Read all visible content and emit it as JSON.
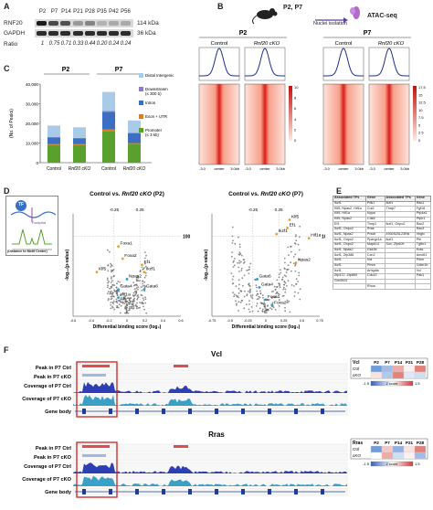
{
  "panel_letters": {
    "a": "A",
    "b": "B",
    "c": "C",
    "d": "D",
    "e": "E",
    "f": "F"
  },
  "panel_a": {
    "columns": [
      "P2",
      "P7",
      "P14",
      "P21",
      "P28",
      "P35",
      "P42",
      "P56"
    ],
    "rows": [
      {
        "label": "RNF20",
        "kda": "114 kDa"
      },
      {
        "label": "GAPDH",
        "kda": "36 kDa"
      }
    ],
    "ratio_label": "Ratio",
    "ratios": [
      "1",
      "0.75",
      "0.71",
      "0.33",
      "0.44",
      "0.20",
      "0.24",
      "0.24"
    ]
  },
  "panel_b": {
    "timepoints": "P2, P7",
    "nuclei": "Nuclei isolation",
    "assay": "ATAC-seq",
    "groups": [
      {
        "title": "P2",
        "sub": [
          "Control",
          "Rnf20 cKO"
        ]
      },
      {
        "title": "P7",
        "sub": [
          "Control",
          "Rnf20 cKO"
        ]
      }
    ],
    "axis_ticks": [
      "-3.0",
      "center",
      "3.0kb"
    ],
    "scale_p2": [
      "10",
      "8",
      "6",
      "4",
      "2",
      "0"
    ],
    "scale_p7": [
      "17.5",
      "15",
      "12.5",
      "10",
      "7.5",
      "5",
      "2.5",
      "0"
    ]
  },
  "panel_c": {
    "chart_data": {
      "type": "bar",
      "title": "",
      "ylabel": "(No. of Peaks)",
      "groups": [
        "P2",
        "P2",
        "P7",
        "P7"
      ],
      "categories": [
        "Control",
        "Rnf20 cKO",
        "Control",
        "Rnf20 cKO"
      ],
      "y_ticks": [
        "40,000",
        "30,000",
        "20,000",
        "10,000",
        "0"
      ],
      "ylim": [
        0,
        40000
      ],
      "series": [
        {
          "name": "Promoter (≤ 3 kb)",
          "color": "#5aa02c",
          "values": [
            9000,
            9000,
            16000,
            9500
          ]
        },
        {
          "name": "Exon + UTR",
          "color": "#e07b1a",
          "values": [
            400,
            400,
            900,
            500
          ]
        },
        {
          "name": "Intron",
          "color": "#3a6fc4",
          "values": [
            3500,
            3000,
            9000,
            5000
          ]
        },
        {
          "name": "Downstream (≤ 300 b)",
          "color": "#8a7cc9",
          "values": [
            200,
            200,
            400,
            300
          ]
        },
        {
          "name": "Distal Intergenic",
          "color": "#a9cbe8",
          "values": [
            5800,
            5400,
            9700,
            6200
          ]
        }
      ]
    }
  },
  "panel_d": {
    "schematic": {
      "tf": "TF",
      "footprint": "Footprint",
      "dnase": "DNA accessibility",
      "motif": "(Distance to Motif Center)"
    },
    "plots": [
      {
        "title_prefix": "Control vs. ",
        "title_italic": "Rnf20 cKO",
        "title_suffix": " (P2)",
        "chart_data": {
          "type": "scatter",
          "xlabel": "Differential binding score (log₂)",
          "ylabel": "-log₁₀(p-value)",
          "x_ticks": [
            "-0.6",
            "-0.4",
            "-0.2",
            "0",
            "0.2",
            "0.4",
            "0.6"
          ],
          "y_ref": "100",
          "top_ticks": [
            "-0.25",
            "0.25"
          ],
          "labels": [
            "Foxa1",
            "Foxa2",
            "Klf5",
            "Ef1",
            "Ikzf1",
            "Npas2",
            "Gata4",
            "Gata6",
            "Hif1a"
          ]
        }
      },
      {
        "title_prefix": "Control vs. ",
        "title_italic": "Rnf20 cKO",
        "title_suffix": " (P7)",
        "chart_data": {
          "type": "scatter",
          "xlabel": "Differential binding score (log₂)",
          "ylabel": "-log₁₀(p-value)",
          "x_ticks": [
            "-0.75",
            "-0.5",
            "-0.25",
            "0",
            "0.25",
            "0.5",
            "0.75"
          ],
          "y_ref": "100",
          "top_ticks": [
            "-0.25",
            "0.25"
          ],
          "labels": [
            "Klf5",
            "Ef1",
            "Ikzf1",
            "Hif1a",
            "Npas2",
            "Gata6",
            "Gata4",
            "Foxa1",
            "Foxa2"
          ]
        }
      }
    ]
  },
  "panel_e": {
    "headers": [
      "Associated TFs",
      "Gene",
      "Associated TFs",
      "Gene"
    ],
    "rows": [
      [
        "Ikzf1",
        "Pdk1",
        "Ikzf1",
        "Rac1"
      ],
      [
        "Klf5, Npas2, Hif1a",
        "Cul2",
        "Thap7",
        "Fgf18"
      ],
      [
        "Klf5, Hif1a",
        "Nppa",
        "",
        "Ptp4a1"
      ],
      [
        "Klf5, Npas2",
        "Cdk6",
        "",
        "Ptpn1"
      ],
      [
        "Ef1",
        "Timp1",
        "Ikzf1, Onpo2",
        "Rac2"
      ],
      [
        "Ikzf1, Onpo2",
        "Rras",
        "",
        "Rac3"
      ],
      [
        "Ikzf1, Npas2",
        "Prkcb",
        "4930525L23Rik",
        "Vegfc"
      ],
      [
        "Ikzf1, Onpo2",
        "Ppargc1a",
        "Ikzf1",
        "Ptn"
      ],
      [
        "Ikzf1, Onpo2",
        "Mapk14",
        "Sox, Zfp609",
        "Tgfbr1"
      ],
      [
        "Ikzf1, Npas2",
        "Gsk3b",
        "",
        "Kras"
      ],
      [
        "Ikzf1, Zfp386",
        "Ccn2",
        "",
        "Amotl1"
      ],
      [
        "Ikzf1",
        "Ncl",
        "",
        "Pdxn"
      ],
      [
        "Ikzf1",
        "Pmra",
        "",
        "Cdkn1b"
      ],
      [
        "Ikzf1",
        "Arhgdia",
        "",
        "Vcl"
      ],
      [
        "Zfp472, Zfp869",
        "Cdc42",
        "",
        "Pak1"
      ],
      [
        "Gm4924",
        "",
        "",
        ""
      ],
      [
        "",
        "Rhoa",
        "",
        ""
      ]
    ]
  },
  "panel_f": {
    "tracks": [
      {
        "gene": "Vcl",
        "labels": [
          "Peak in P7 Ctrl",
          "Peak in P7 cKO",
          "Coverage of P7 Ctrl",
          "Coverage of P7 cKO",
          "Gene body"
        ],
        "heat_cols": [
          "P2",
          "P7",
          "P14",
          "P21",
          "P28"
        ],
        "heat_rows": [
          "Ctrl",
          "cKO"
        ],
        "heat_values": [
          [
            -0.9,
            -0.6,
            0.6,
            0.1,
            0.9
          ],
          [
            0.2,
            -0.5,
            0.9,
            -0.2,
            -0.3
          ]
        ],
        "legend": [
          "1.5",
          "Z score",
          "-1.5"
        ]
      },
      {
        "gene": "Rras",
        "labels": [
          "Peak in P7 Ctrl",
          "Peak in P7 cKO",
          "Coverage of P7 Ctrl",
          "Coverage of P7 cKO",
          "Gene body"
        ],
        "heat_cols": [
          "P2",
          "P7",
          "P14",
          "P21",
          "P28"
        ],
        "heat_rows": [
          "Ctrl",
          "cKO"
        ],
        "heat_values": [
          [
            -0.9,
            0.4,
            -0.7,
            0.2,
            0.9
          ],
          [
            0.0,
            0.6,
            -0.3,
            0.1,
            -0.6
          ]
        ],
        "legend": [
          "1.5",
          "Z score",
          "-1.5"
        ]
      }
    ]
  }
}
